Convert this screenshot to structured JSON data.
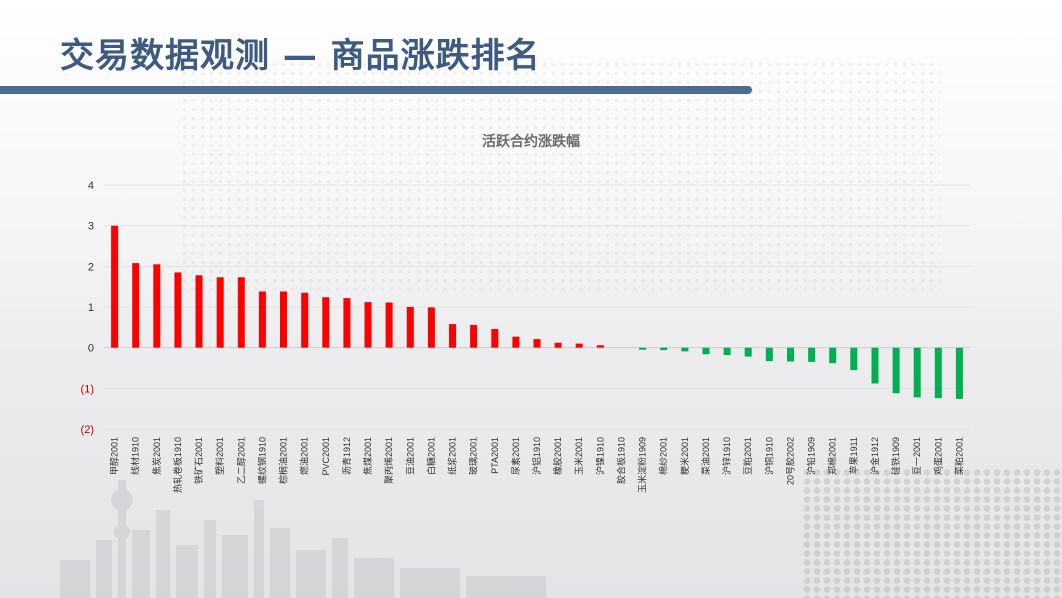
{
  "header": {
    "title": "交易数据观测 — 商品涨跌排名"
  },
  "colors": {
    "up": "#ff0000",
    "down": "#00b050",
    "title": "#3d5a80",
    "axis_text": "#333333",
    "negative_tick": "#c00000"
  },
  "chart_data": {
    "type": "bar",
    "title": "活跃合约涨跌幅",
    "xlabel": "",
    "ylabel": "",
    "ylim": [
      -2,
      4
    ],
    "yticks": [
      4,
      3,
      2,
      1,
      0,
      -1,
      -2
    ],
    "ytick_labels": [
      "4",
      "3",
      "2",
      "1",
      "0",
      "(1)",
      "(2)"
    ],
    "grid": true,
    "legend": "none",
    "categories": [
      "甲醇2001",
      "线材1910",
      "焦炭2001",
      "热轧卷板1910",
      "铁矿石2001",
      "塑料2001",
      "乙二醇2001",
      "螺纹钢1910",
      "棕榈油2001",
      "燃油2001",
      "PVC2001",
      "沥青1912",
      "焦煤2001",
      "聚丙烯2001",
      "豆油2001",
      "白糖2001",
      "纸浆2001",
      "玻璃2001",
      "PTA2001",
      "尿素2001",
      "沪铝1910",
      "橡胶2001",
      "玉米2001",
      "沪镍1910",
      "胶合板1910",
      "玉米淀粉1909",
      "棉纱2001",
      "粳米2001",
      "菜油2001",
      "沪锌1910",
      "豆粕2001",
      "沪铜1910",
      "20号胶2002",
      "沪铅1909",
      "郑棉2001",
      "苹果1911",
      "沪金1912",
      "硅铁1909",
      "豆一2001",
      "鸡蛋2001",
      "菜粕2001"
    ],
    "values": [
      3.0,
      2.08,
      2.05,
      1.85,
      1.78,
      1.73,
      1.73,
      1.38,
      1.38,
      1.35,
      1.24,
      1.22,
      1.12,
      1.11,
      1.0,
      0.99,
      0.58,
      0.56,
      0.46,
      0.27,
      0.21,
      0.12,
      0.1,
      0.06,
      0.0,
      -0.05,
      -0.06,
      -0.09,
      -0.16,
      -0.18,
      -0.22,
      -0.33,
      -0.34,
      -0.35,
      -0.38,
      -0.55,
      -0.88,
      -1.12,
      -1.22,
      -1.24,
      -1.26
    ]
  }
}
